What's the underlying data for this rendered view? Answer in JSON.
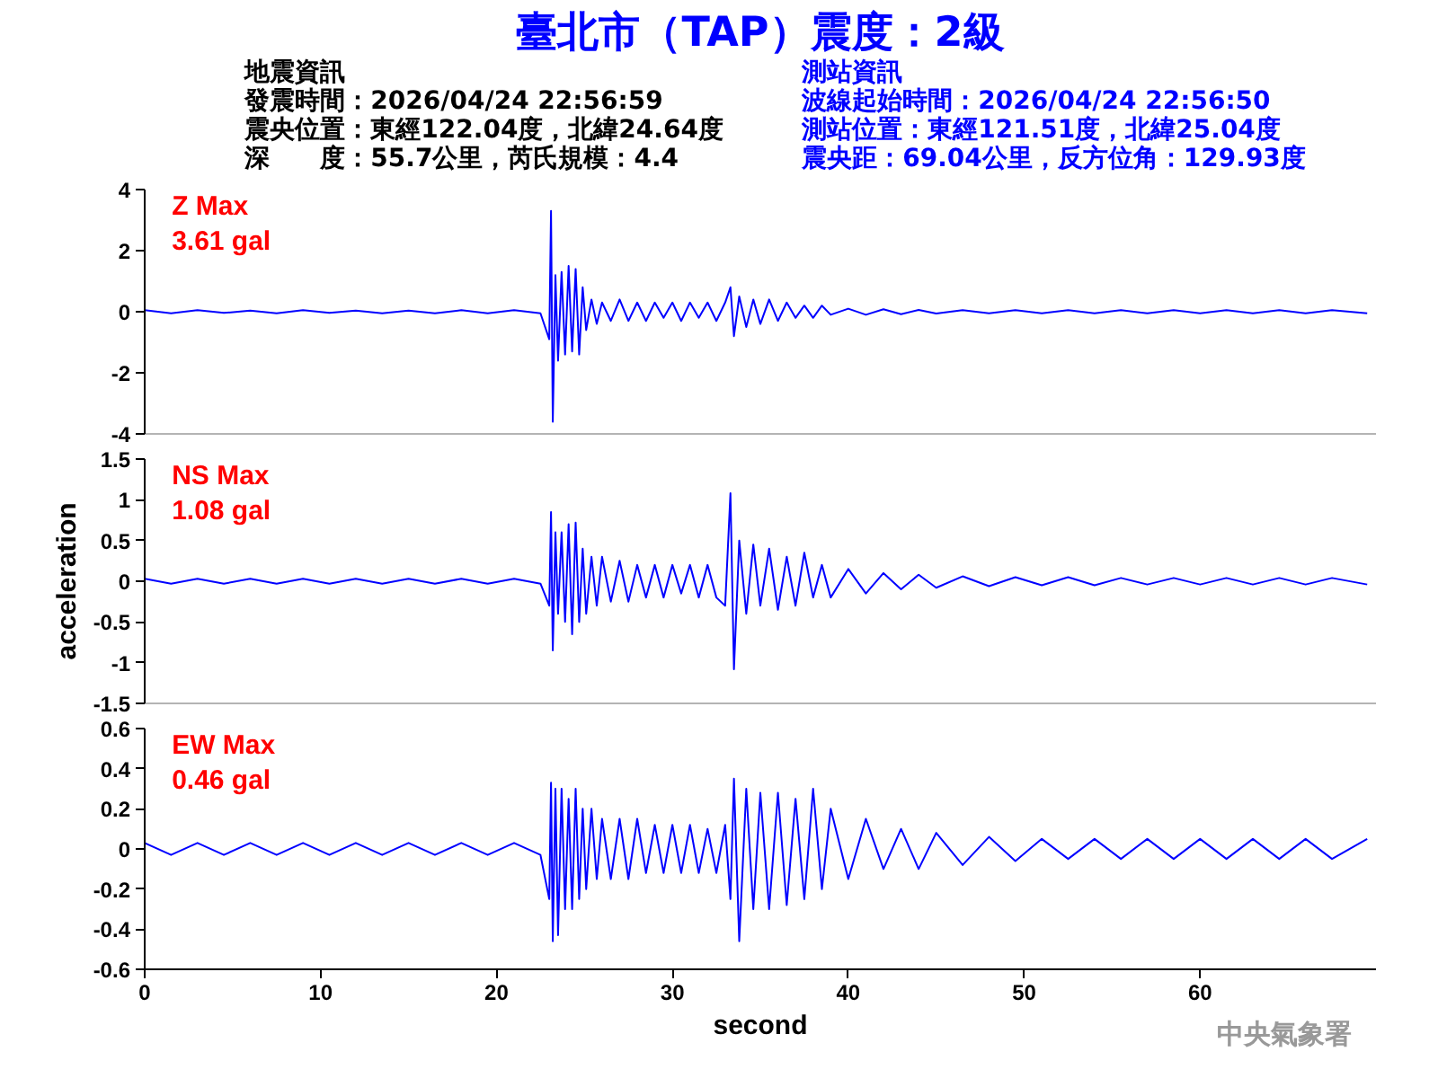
{
  "chart_data": [
    {
      "type": "other",
      "title": "臺北市（TAP）震度：2級",
      "annotations": [
        "地震資訊",
        "發震時間：2026/04/24 22:56:59",
        "震央位置：東經122.04度，北緯24.64度",
        "深　　度：55.7公里，芮氏規模：4.4",
        "測站資訊",
        "波線起始時間：2026/04/24 22:56:50",
        "測站位置：東經121.51度，北緯25.04度",
        "震央距：69.04公里，反方位角：129.93度"
      ]
    },
    {
      "type": "line",
      "annotations": [
        "Z Max",
        "3.61 gal"
      ],
      "xlim": [
        0,
        70
      ],
      "xticks": [
        0,
        10,
        20,
        30,
        40,
        50,
        60
      ],
      "ylim": [
        -4,
        4
      ],
      "yticks": [
        -4,
        -2,
        0,
        2,
        4
      ],
      "tick_labels": "y",
      "x": [
        0,
        1.5,
        3,
        4.5,
        6,
        7.5,
        9,
        10.5,
        12,
        13.5,
        15,
        16.5,
        18,
        19.5,
        21,
        22.5,
        23.0,
        23.1,
        23.2,
        23.35,
        23.5,
        23.7,
        23.9,
        24.1,
        24.3,
        24.5,
        24.7,
        24.9,
        25.1,
        25.4,
        25.7,
        26,
        26.5,
        27,
        27.5,
        28,
        28.5,
        29,
        29.5,
        30,
        30.5,
        31,
        31.5,
        32,
        32.5,
        33,
        33.3,
        33.5,
        33.8,
        34.2,
        34.6,
        35,
        35.5,
        36,
        36.5,
        37,
        37.5,
        38,
        38.5,
        39,
        40,
        41,
        42,
        43,
        44,
        45,
        46.5,
        48,
        49.5,
        51,
        52.5,
        54,
        55.5,
        57,
        58.5,
        60,
        61.5,
        63,
        64.5,
        66,
        67.5,
        69.5
      ],
      "series": [
        {
          "color": "#0000ff",
          "values": [
            0.05,
            -0.05,
            0.05,
            -0.04,
            0.04,
            -0.05,
            0.05,
            -0.04,
            0.04,
            -0.05,
            0.04,
            -0.05,
            0.05,
            -0.05,
            0.05,
            -0.05,
            -0.9,
            3.3,
            -3.6,
            1.2,
            -1.6,
            1.3,
            -1.4,
            1.5,
            -1.3,
            1.4,
            -1.4,
            0.8,
            -0.6,
            0.4,
            -0.4,
            0.3,
            -0.3,
            0.4,
            -0.3,
            0.3,
            -0.3,
            0.3,
            -0.2,
            0.3,
            -0.3,
            0.3,
            -0.2,
            0.3,
            -0.3,
            0.3,
            0.8,
            -0.8,
            0.5,
            -0.5,
            0.4,
            -0.4,
            0.4,
            -0.3,
            0.3,
            -0.2,
            0.2,
            -0.2,
            0.2,
            -0.1,
            0.1,
            -0.1,
            0.08,
            -0.08,
            0.06,
            -0.06,
            0.05,
            -0.05,
            0.05,
            -0.05,
            0.05,
            -0.05,
            0.05,
            -0.05,
            0.05,
            -0.05,
            0.05,
            -0.05,
            0.05,
            -0.05,
            0.05,
            -0.05
          ]
        }
      ]
    },
    {
      "type": "line",
      "ylabel": "acceleration",
      "annotations": [
        "NS Max",
        "1.08 gal"
      ],
      "xlim": [
        0,
        70
      ],
      "xticks": [
        0,
        10,
        20,
        30,
        40,
        50,
        60
      ],
      "ylim": [
        -1.5,
        1.5
      ],
      "yticks": [
        -1.5,
        -1,
        -0.5,
        0,
        0.5,
        1,
        1.5
      ],
      "tick_labels": "y",
      "x": [
        0,
        1.5,
        3,
        4.5,
        6,
        7.5,
        9,
        10.5,
        12,
        13.5,
        15,
        16.5,
        18,
        19.5,
        21,
        22.5,
        23.0,
        23.1,
        23.2,
        23.35,
        23.5,
        23.7,
        23.9,
        24.1,
        24.3,
        24.5,
        24.7,
        24.9,
        25.1,
        25.4,
        25.7,
        26,
        26.5,
        27,
        27.5,
        28,
        28.5,
        29,
        29.5,
        30,
        30.5,
        31,
        31.5,
        32,
        32.5,
        33,
        33.3,
        33.5,
        33.8,
        34.2,
        34.6,
        35,
        35.5,
        36,
        36.5,
        37,
        37.5,
        38,
        38.5,
        39,
        40,
        41,
        42,
        43,
        44,
        45,
        46.5,
        48,
        49.5,
        51,
        52.5,
        54,
        55.5,
        57,
        58.5,
        60,
        61.5,
        63,
        64.5,
        66,
        67.5,
        69.5
      ],
      "series": [
        {
          "color": "#0000ff",
          "values": [
            0.03,
            -0.03,
            0.03,
            -0.03,
            0.03,
            -0.03,
            0.03,
            -0.03,
            0.03,
            -0.03,
            0.03,
            -0.03,
            0.03,
            -0.03,
            0.03,
            -0.03,
            -0.3,
            0.85,
            -0.85,
            0.6,
            -0.4,
            0.6,
            -0.5,
            0.7,
            -0.65,
            0.72,
            -0.5,
            0.4,
            -0.4,
            0.3,
            -0.3,
            0.3,
            -0.25,
            0.25,
            -0.25,
            0.2,
            -0.2,
            0.2,
            -0.2,
            0.2,
            -0.15,
            0.2,
            -0.2,
            0.2,
            -0.2,
            -0.3,
            1.08,
            -1.08,
            0.5,
            -0.4,
            0.45,
            -0.3,
            0.4,
            -0.35,
            0.3,
            -0.3,
            0.35,
            -0.2,
            0.2,
            -0.2,
            0.15,
            -0.15,
            0.1,
            -0.1,
            0.08,
            -0.08,
            0.06,
            -0.06,
            0.05,
            -0.05,
            0.05,
            -0.05,
            0.04,
            -0.04,
            0.04,
            -0.04,
            0.04,
            -0.04,
            0.04,
            -0.04,
            0.04,
            -0.04
          ]
        }
      ]
    },
    {
      "type": "line",
      "xlabel": "second",
      "annotations": [
        "EW Max",
        "0.46 gal",
        "中央氣象署"
      ],
      "xlim": [
        0,
        70
      ],
      "xticks": [
        0,
        10,
        20,
        30,
        40,
        50,
        60
      ],
      "ylim": [
        -0.6,
        0.6
      ],
      "yticks": [
        -0.6,
        -0.4,
        -0.2,
        0,
        0.2,
        0.4,
        0.6
      ],
      "x": [
        0,
        1.5,
        3,
        4.5,
        6,
        7.5,
        9,
        10.5,
        12,
        13.5,
        15,
        16.5,
        18,
        19.5,
        21,
        22.5,
        23.0,
        23.1,
        23.2,
        23.35,
        23.5,
        23.7,
        23.9,
        24.1,
        24.3,
        24.5,
        24.7,
        24.9,
        25.1,
        25.4,
        25.7,
        26,
        26.5,
        27,
        27.5,
        28,
        28.5,
        29,
        29.5,
        30,
        30.5,
        31,
        31.5,
        32,
        32.5,
        33,
        33.3,
        33.5,
        33.8,
        34.2,
        34.6,
        35,
        35.5,
        36,
        36.5,
        37,
        37.5,
        38,
        38.5,
        39,
        40,
        41,
        42,
        43,
        44,
        45,
        46.5,
        48,
        49.5,
        51,
        52.5,
        54,
        55.5,
        57,
        58.5,
        60,
        61.5,
        63,
        64.5,
        66,
        67.5,
        69.5
      ],
      "series": [
        {
          "color": "#0000ff",
          "values": [
            0.03,
            -0.03,
            0.03,
            -0.03,
            0.03,
            -0.03,
            0.03,
            -0.03,
            0.03,
            -0.03,
            0.03,
            -0.03,
            0.03,
            -0.03,
            0.03,
            -0.03,
            -0.25,
            0.33,
            -0.46,
            0.3,
            -0.43,
            0.3,
            -0.3,
            0.25,
            -0.3,
            0.3,
            -0.25,
            0.2,
            -0.2,
            0.2,
            -0.15,
            0.15,
            -0.15,
            0.15,
            -0.15,
            0.15,
            -0.12,
            0.12,
            -0.12,
            0.12,
            -0.12,
            0.12,
            -0.12,
            0.1,
            -0.12,
            0.12,
            -0.25,
            0.35,
            -0.46,
            0.3,
            -0.3,
            0.28,
            -0.3,
            0.28,
            -0.28,
            0.25,
            -0.25,
            0.3,
            -0.2,
            0.2,
            -0.15,
            0.15,
            -0.1,
            0.1,
            -0.1,
            0.08,
            -0.08,
            0.06,
            -0.06,
            0.05,
            -0.05,
            0.05,
            -0.05,
            0.05,
            -0.05,
            0.05,
            -0.05,
            0.05,
            -0.05,
            0.05,
            -0.05,
            0.05
          ]
        }
      ]
    }
  ]
}
